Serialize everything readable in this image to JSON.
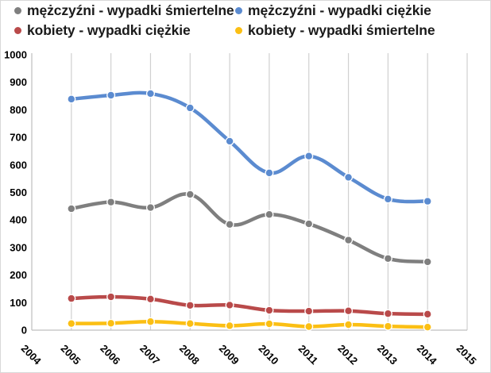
{
  "chart_data": {
    "type": "line",
    "title": "",
    "xlabel": "",
    "ylabel": "",
    "x": [
      2005,
      2006,
      2007,
      2008,
      2009,
      2010,
      2011,
      2012,
      2013,
      2014
    ],
    "x_ticks": [
      "2004",
      "2005",
      "2006",
      "2007",
      "2008",
      "2009",
      "2010",
      "2011",
      "2012",
      "2013",
      "2014",
      "2015"
    ],
    "xlim": [
      2004,
      2015
    ],
    "y_ticks": [
      "0",
      "100",
      "200",
      "300",
      "400",
      "500",
      "600",
      "700",
      "800",
      "900",
      "1000"
    ],
    "ylim": [
      0,
      1000
    ],
    "grid": "vertical",
    "legend_position": "top",
    "smoothed": true,
    "series": [
      {
        "name": "mężczyźni - wypadki śmiertelne",
        "color": "#7f7f7f",
        "values": [
          441,
          465,
          445,
          493,
          384,
          420,
          386,
          327,
          260,
          248
        ]
      },
      {
        "name": "mężczyźni - wypadki ciężkie",
        "color": "#5b8bd0",
        "values": [
          839,
          853,
          859,
          807,
          686,
          571,
          632,
          555,
          476,
          468
        ]
      },
      {
        "name": "kobiety - wypadki ciężkie",
        "color": "#b94a4a",
        "values": [
          115,
          121,
          113,
          90,
          91,
          72,
          69,
          70,
          60,
          58
        ]
      },
      {
        "name": "kobiety - wypadki śmiertelne",
        "color": "#fbbf14",
        "values": [
          24,
          25,
          31,
          24,
          16,
          23,
          13,
          20,
          14,
          11
        ]
      }
    ]
  },
  "legend": [
    {
      "label": "mężczyźni - wypadki śmiertelne",
      "color": "#7f7f7f"
    },
    {
      "label": "mężczyźni - wypadki ciężkie",
      "color": "#5b8bd0"
    },
    {
      "label": "kobiety - wypadki ciężkie",
      "color": "#b94a4a"
    },
    {
      "label": "kobiety - wypadki śmiertelne",
      "color": "#fbbf14"
    }
  ]
}
